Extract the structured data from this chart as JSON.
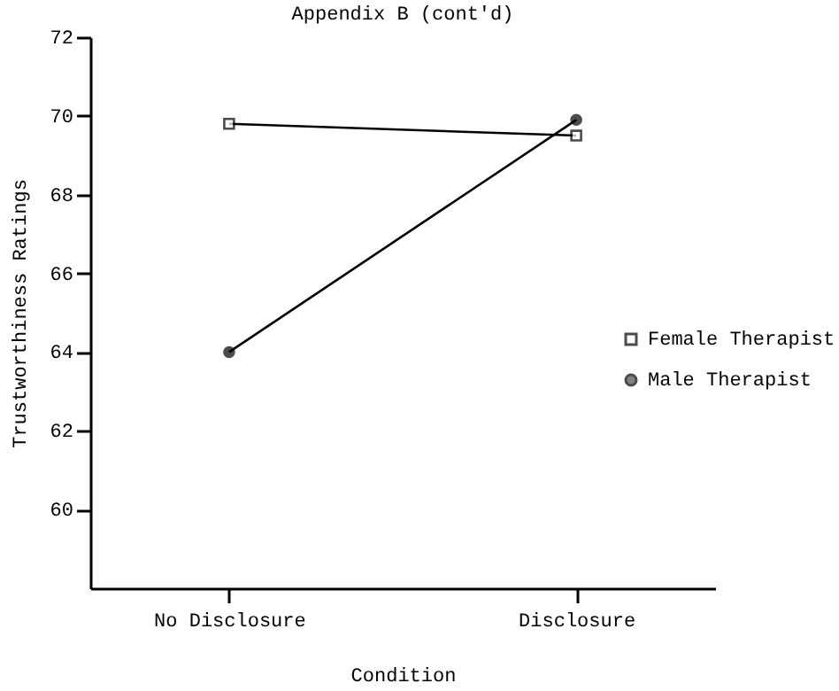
{
  "chart_data": {
    "type": "line",
    "title": "Appendix B (cont'd)",
    "xlabel": "Condition",
    "ylabel": "Trustworthiness Ratings",
    "categories": [
      "No Disclosure",
      "Disclosure"
    ],
    "series": [
      {
        "name": "Female Therapist",
        "color": "#000000",
        "marker": "square",
        "values": [
          69.8,
          69.5
        ]
      },
      {
        "name": "Male Therapist",
        "color": "#000000",
        "marker": "circle",
        "values": [
          64.0,
          69.9
        ]
      }
    ],
    "ylim": [
      58,
      72
    ],
    "yticks": [
      60,
      62,
      64,
      66,
      68,
      70,
      72
    ],
    "grid": false,
    "legend": "right",
    "line_style": "solid"
  }
}
